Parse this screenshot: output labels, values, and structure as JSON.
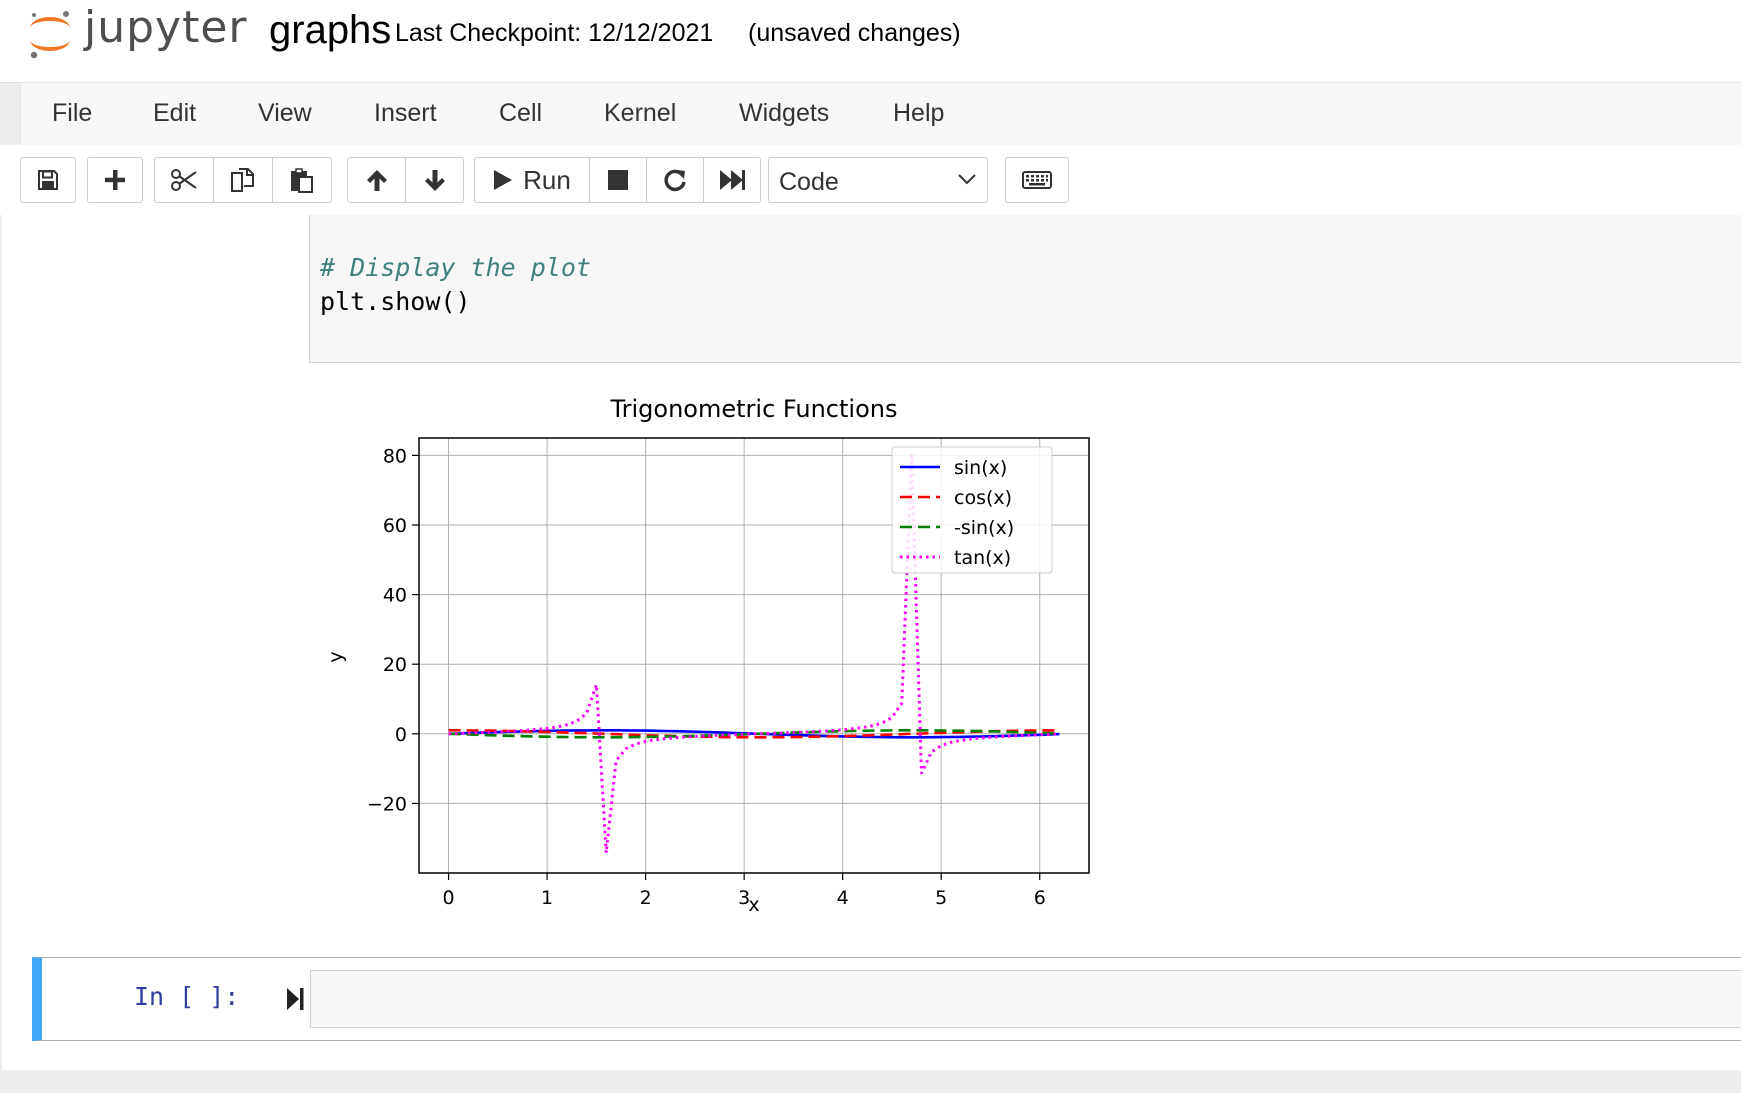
{
  "header": {
    "logo_text": "jupyter",
    "notebook_name": "graphs",
    "checkpoint": "Last Checkpoint: 12/12/2021",
    "autosave_status": "(unsaved changes)"
  },
  "menubar": {
    "items": [
      {
        "label": "File"
      },
      {
        "label": "Edit"
      },
      {
        "label": "View"
      },
      {
        "label": "Insert"
      },
      {
        "label": "Cell"
      },
      {
        "label": "Kernel"
      },
      {
        "label": "Widgets"
      },
      {
        "label": "Help"
      }
    ]
  },
  "toolbar": {
    "icons": [
      "save-icon",
      "plus-icon",
      "scissors-icon",
      "copy-icon",
      "paste-icon",
      "arrow-up-icon",
      "arrow-down-icon",
      "run-icon",
      "stop-icon",
      "restart-icon",
      "fast-forward-icon",
      "keyboard-icon"
    ],
    "run_label": "Run",
    "cell_type": "Code"
  },
  "code_cell": {
    "comment": "# Display the plot",
    "call": "plt.show()"
  },
  "chart_data": {
    "type": "line",
    "title": "Trigonometric Functions",
    "xlabel": "x",
    "ylabel": "y",
    "xlim": [
      -0.3,
      6.5
    ],
    "ylim": [
      -40,
      85
    ],
    "xticks": [
      0,
      1,
      2,
      3,
      4,
      5,
      6
    ],
    "yticks": [
      -20,
      0,
      20,
      40,
      60,
      80
    ],
    "grid": true,
    "legend": "top-right",
    "x_step": 0.1,
    "x_count": 63,
    "series": [
      {
        "name": "sin(x)",
        "color": "#0000ff",
        "style": "solid",
        "fn": "sin"
      },
      {
        "name": "cos(x)",
        "color": "#ff0000",
        "style": "dashed",
        "fn": "cos"
      },
      {
        "name": "-sin(x)",
        "color": "#008000",
        "style": "dashed",
        "fn": "neg_sin"
      },
      {
        "name": "tan(x)",
        "color": "#ff00ff",
        "style": "dotted",
        "fn": "tan"
      }
    ]
  },
  "empty_cell": {
    "prompt": "In [ ]:"
  }
}
